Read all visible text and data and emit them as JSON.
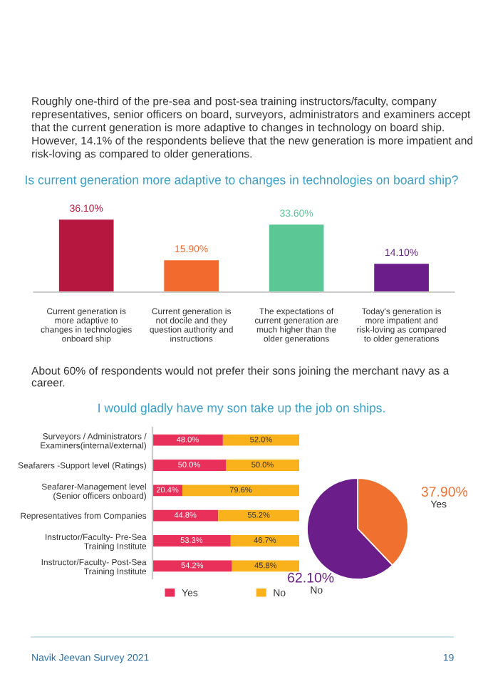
{
  "chart_data": [
    {
      "type": "bar",
      "title": "Is current generation more adaptive to changes in technologies on board ship?",
      "annotations": [
        "Roughly one-third of the pre-sea and post-sea training instructors/faculty, company representatives, senior officers on board, surveyors, administrators and examiners accept that the current generation is more adaptive to changes in technology on board ship. However, 14.1% of the respondents believe that the new generation is more impatient and risk-loving as compared to older generations."
      ],
      "categories": [
        "Current generation is\nmore adaptive to\nchanges in technologies\nonboard ship",
        "Current generation is\nnot docile and they\nquestion authority and\ninstructions",
        "The expectations of\ncurrent generation are\nmuch higher than the\nolder generations",
        "Today's generation is\nmore impatient and\nrisk-loving as compared\nto older generations"
      ],
      "values": [
        36.1,
        15.9,
        33.6,
        14.1
      ],
      "value_labels": [
        "36.10%",
        "15.90%",
        "33.60%",
        "14.10%"
      ],
      "colors": [
        "#b5173e",
        "#f26a2e",
        "#5ac795",
        "#6b1e8a"
      ]
    },
    {
      "type": "bar",
      "orientation": "horizontal",
      "stacked": true,
      "legend": "bottom",
      "title": "I would gladly have my son take up the job on ships.",
      "annotations": [
        "About 60% of respondents would not prefer their sons joining the merchant navy as a career."
      ],
      "categories": [
        "Surveyors / Administrators /\nExaminers(internal/external)",
        "Seafarers -Support level (Ratings)",
        "Seafarer-Management level\n(Senior officers onboard)",
        "Representatives from Companies",
        "Instructor/Faculty- Pre-Sea\nTraining Institute",
        "Instructor/Faculty- Post-Sea\nTraining Institute"
      ],
      "series": [
        {
          "name": "Yes",
          "color": "#e8305a",
          "values": [
            48.0,
            50.0,
            20.4,
            44.8,
            53.3,
            54.2
          ],
          "value_labels": [
            "48.0%",
            "50.0%",
            "20.4%",
            "44.8%",
            "53.3%",
            "54.2%"
          ]
        },
        {
          "name": "No",
          "color": "#f9b21b",
          "values": [
            52.0,
            50.0,
            79.6,
            55.2,
            46.7,
            45.8
          ],
          "value_labels": [
            "52.0%",
            "50.0%",
            "79.6%",
            "55.2%",
            "46.7%",
            "45.8%"
          ]
        }
      ]
    },
    {
      "type": "pie",
      "categories": [
        "Yes",
        "No"
      ],
      "values": [
        37.9,
        62.1
      ],
      "value_labels": [
        "37.90%",
        "62.10%"
      ],
      "colors": [
        "#f07030",
        "#6b1e8a"
      ],
      "annotations": [
        "Navik Jeevan Survey 2021",
        "19"
      ]
    }
  ]
}
